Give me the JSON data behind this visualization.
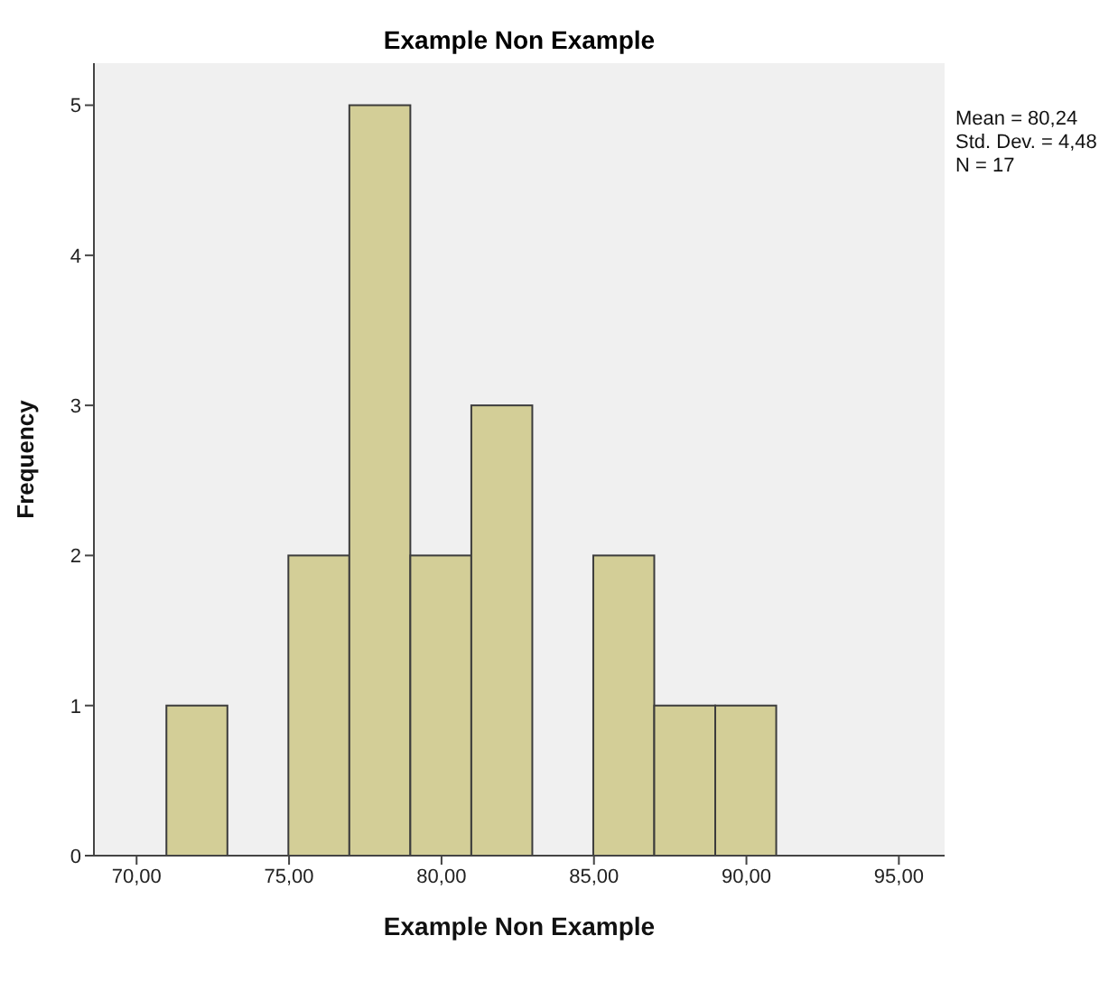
{
  "chart_data": {
    "type": "histogram",
    "title": "Example Non Example",
    "xlabel": "Example Non Example",
    "ylabel": "Frequency",
    "bins": [
      71,
      73,
      75,
      77,
      79,
      81,
      83,
      85,
      87,
      89,
      91
    ],
    "values": [
      1,
      0,
      2,
      5,
      2,
      3,
      0,
      2,
      1,
      1
    ],
    "color": "#d3ce97",
    "xlim": [
      68.6,
      96.5
    ],
    "xticks": [
      {
        "value": 70,
        "label": "70,00"
      },
      {
        "value": 75,
        "label": "75,00"
      },
      {
        "value": 80,
        "label": "80,00"
      },
      {
        "value": 85,
        "label": "85,00"
      },
      {
        "value": 90,
        "label": "90,00"
      },
      {
        "value": 95,
        "label": "95,00"
      }
    ],
    "ylim": [
      0,
      5.28
    ],
    "yticks": [
      0,
      1,
      2,
      3,
      4,
      5
    ],
    "annotations": [
      "Mean = 80,24",
      "Std. Dev. = 4,48",
      "N = 17"
    ]
  }
}
